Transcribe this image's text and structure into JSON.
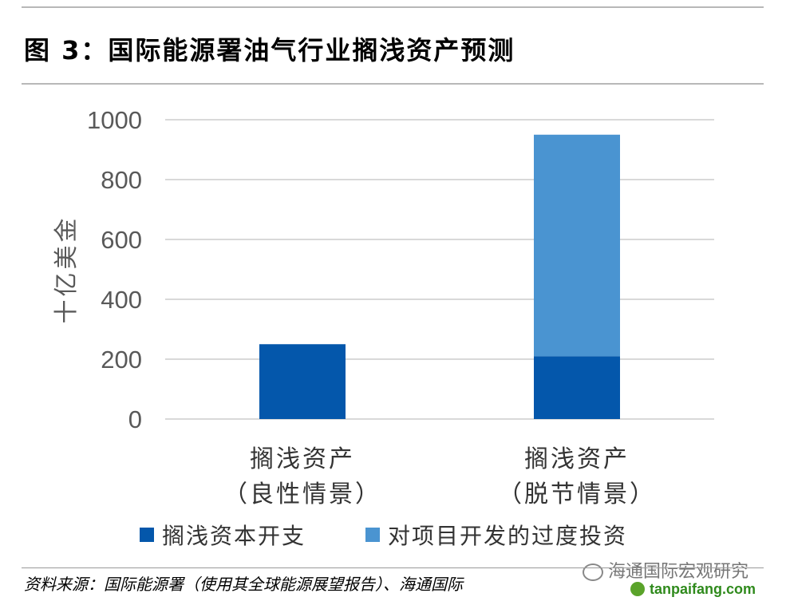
{
  "figure": {
    "title": "图 3：国际能源署油气行业搁浅资产预测",
    "source": "资料来源：国际能源署（使用其全球能源展望报告）、海通国际",
    "watermark": "海通国际宏观研究",
    "site": "tanpaifang.com"
  },
  "colors": {
    "series_1": "#0457ab",
    "series_2": "#4a94d1",
    "grid": "#d9d9d9",
    "tick_text": "#595959"
  },
  "chart_data": {
    "type": "bar",
    "stacked": true,
    "categories": [
      [
        "搁浅资产",
        "（良性情景）"
      ],
      [
        "搁浅资产",
        "（脱节情景）"
      ]
    ],
    "series": [
      {
        "name": "搁浅资本开支",
        "values": [
          250,
          210
        ]
      },
      {
        "name": "对项目开发的过度投资",
        "values": [
          0,
          740
        ]
      }
    ],
    "ylabel": "十亿美金",
    "ylim": [
      0,
      1000
    ],
    "yticks": [
      0,
      200,
      400,
      600,
      800,
      1000
    ],
    "grid": true,
    "legend": "bottom"
  }
}
